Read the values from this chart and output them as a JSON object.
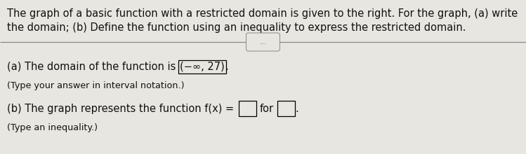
{
  "background_color": "#e8e6e0",
  "text_color": "#111111",
  "line1": "The graph of a basic function with a restricted domain is given to the right. For the graph, (a) write",
  "line2": "the domain; (b) Define the function using an inequality to express the restricted domain.",
  "separator_text": "...",
  "part_a_prefix": "(a) The domain of the function is ",
  "part_a_boxed": "(−∞, 27)",
  "part_a_suffix": ".",
  "part_a_sub": "(Type your answer in interval notation.)",
  "part_b_prefix": "(b) The graph represents the function f(x) = ",
  "part_b_for": "for",
  "part_b_sub": "(Type an inequality.)",
  "font_size_body": 10.5,
  "font_size_small": 9.2
}
